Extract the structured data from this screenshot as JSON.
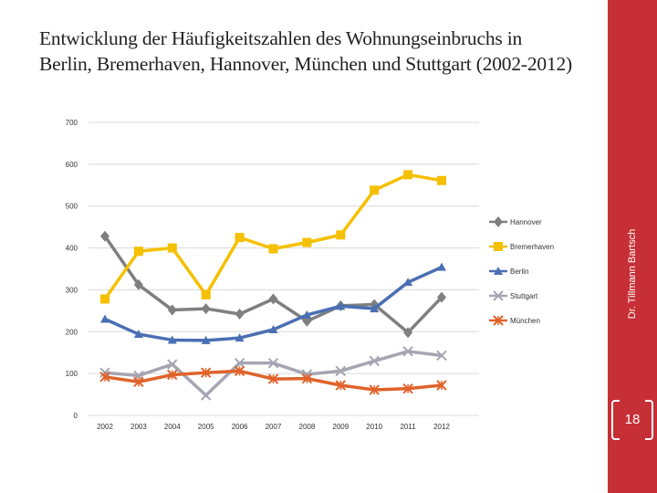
{
  "slide": {
    "title_line1": "Entwicklung der Häufigkeitszahlen des Wohnungseinbruchs in",
    "title_line2": "Berlin, Bremerhaven, Hannover, München und Stuttgart (2002-2012)",
    "author": "Dr. Tillmann Bartsch",
    "page_number": "18"
  },
  "colors": {
    "sidebar": "#c62f35",
    "grid": "#d9d9d9"
  },
  "chart_data": {
    "type": "line",
    "title": "",
    "xlabel": "",
    "ylabel": "",
    "categories": [
      "2002",
      "2003",
      "2004",
      "2005",
      "2006",
      "2007",
      "2008",
      "2009",
      "2010",
      "2011",
      "2012"
    ],
    "ylim": [
      0,
      700
    ],
    "yticks": [
      0,
      100,
      200,
      300,
      400,
      500,
      600,
      700
    ],
    "grid": true,
    "legend_position": "right",
    "series": [
      {
        "name": "Hannover",
        "color": "#7f7f7f",
        "marker": "diamond",
        "values": [
          428,
          312,
          252,
          255,
          242,
          278,
          225,
          262,
          265,
          198,
          282
        ]
      },
      {
        "name": "Bremerhaven",
        "color": "#f5c000",
        "marker": "square",
        "values": [
          278,
          392,
          400,
          288,
          425,
          398,
          413,
          431,
          538,
          575,
          561
        ]
      },
      {
        "name": "Berlin",
        "color": "#4a6fb3",
        "marker": "triangle",
        "values": [
          230,
          194,
          180,
          179,
          185,
          205,
          240,
          261,
          255,
          318,
          354
        ]
      },
      {
        "name": "Stuttgart",
        "color": "#a5a5b3",
        "marker": "x",
        "values": [
          102,
          95,
          122,
          48,
          125,
          125,
          98,
          106,
          130,
          153,
          143
        ]
      },
      {
        "name": "München",
        "color": "#e0632a",
        "marker": "star",
        "values": [
          92,
          80,
          97,
          102,
          106,
          87,
          88,
          72,
          61,
          64,
          72
        ]
      }
    ]
  }
}
